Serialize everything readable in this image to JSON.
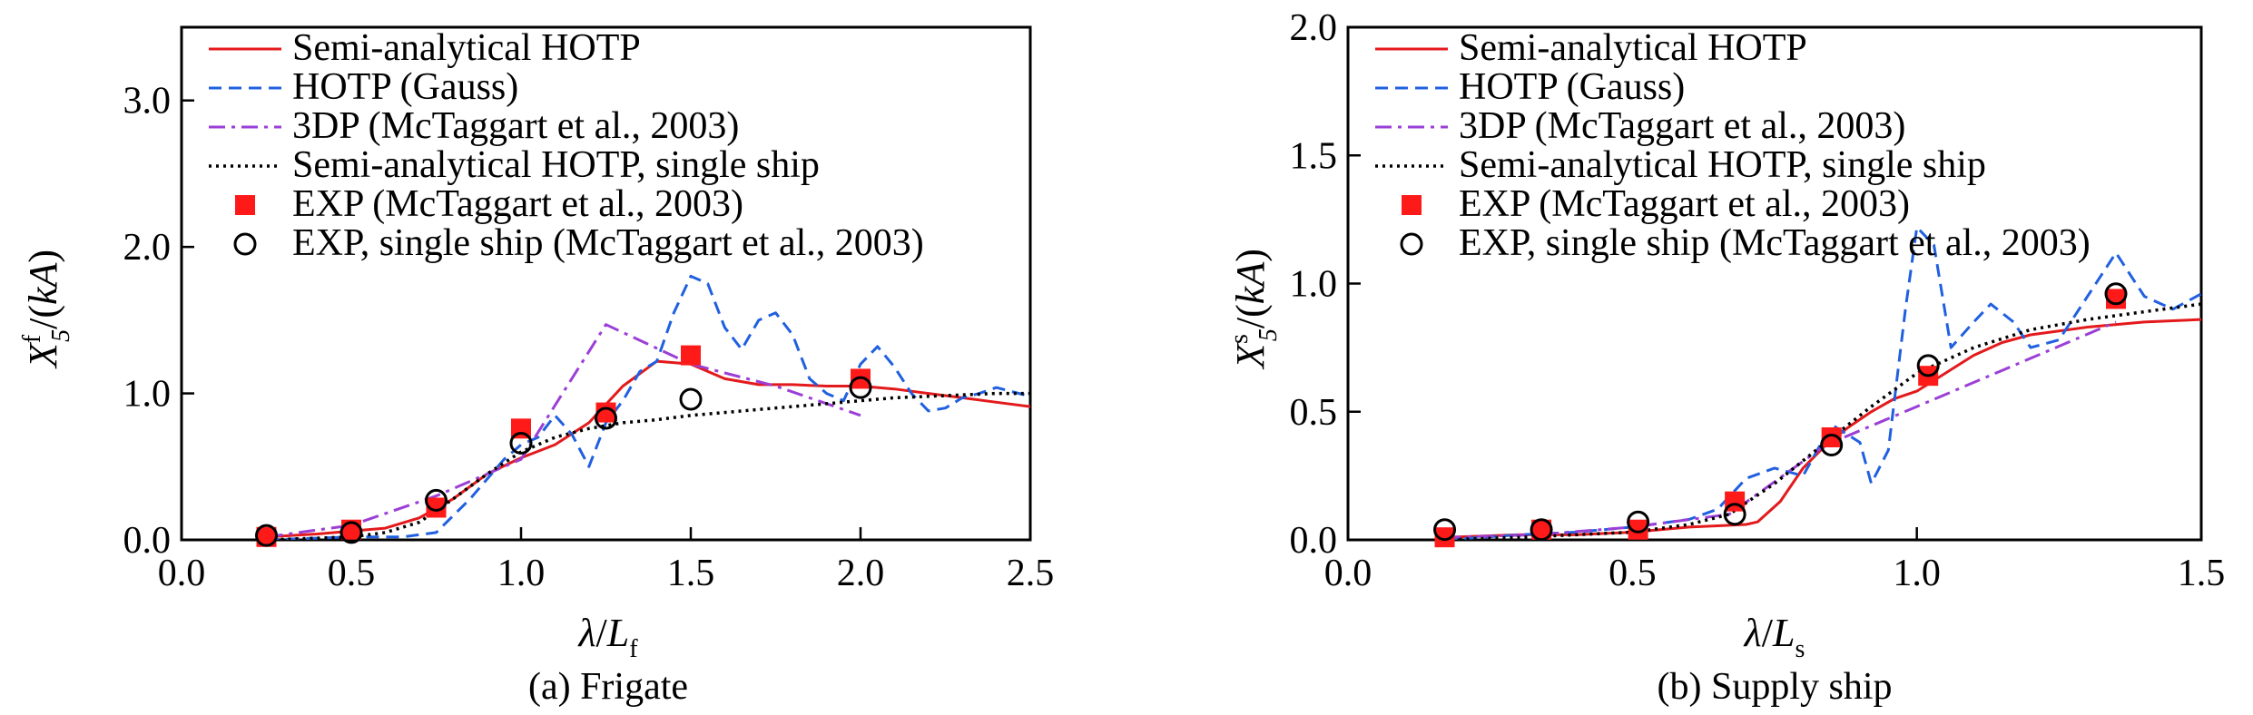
{
  "colors": {
    "semi_analytical": "#e31a1c",
    "gauss": "#2060e0",
    "three_dp": "#9b3fd6",
    "single_ship": "#000000",
    "exp": "#ff1a1a",
    "exp_single": "#000000"
  },
  "legend_labels": {
    "semi": "Semi-analytical HOTP",
    "gauss": "HOTP (Gauss)",
    "dp3": "3DP (McTaggart et al., 2003)",
    "single": "Semi-analytical HOTP, single ship",
    "exp": "EXP (McTaggart et al., 2003)",
    "exp_single": "EXP, single ship (McTaggart et al., 2003)"
  },
  "chart_data": [
    {
      "type": "line",
      "caption": "(a) Frigate",
      "xlabel": "λ/Lf",
      "ylabel": "X5f/(kA)",
      "xlim": [
        0.0,
        2.5
      ],
      "ylim": [
        0.0,
        3.5
      ],
      "xticks": [
        "0.0",
        "0.5",
        "1.0",
        "1.5",
        "2.0",
        "2.5"
      ],
      "yticks": [
        "0.0",
        "1.0",
        "2.0",
        "3.0"
      ],
      "legend_position": "top-left",
      "series": [
        {
          "key": "semi",
          "name": "Semi-analytical HOTP",
          "style": "solid",
          "x": [
            0.25,
            0.4,
            0.5,
            0.6,
            0.7,
            0.8,
            0.9,
            1.0,
            1.1,
            1.2,
            1.3,
            1.4,
            1.5,
            1.6,
            1.7,
            1.8,
            1.9,
            2.0,
            2.1,
            2.2,
            2.3,
            2.4,
            2.5
          ],
          "y": [
            0.02,
            0.04,
            0.06,
            0.08,
            0.15,
            0.28,
            0.45,
            0.56,
            0.65,
            0.8,
            1.05,
            1.22,
            1.2,
            1.1,
            1.06,
            1.06,
            1.05,
            1.05,
            1.03,
            1.0,
            0.97,
            0.94,
            0.91
          ]
        },
        {
          "key": "gauss",
          "name": "HOTP (Gauss)",
          "style": "dashed",
          "x": [
            0.25,
            0.5,
            0.65,
            0.75,
            0.85,
            0.95,
            1.0,
            1.05,
            1.1,
            1.15,
            1.2,
            1.25,
            1.3,
            1.35,
            1.4,
            1.45,
            1.5,
            1.55,
            1.6,
            1.65,
            1.7,
            1.75,
            1.8,
            1.85,
            1.9,
            1.95,
            2.0,
            2.05,
            2.1,
            2.15,
            2.2,
            2.25,
            2.3,
            2.35,
            2.4,
            2.45,
            2.5
          ],
          "y": [
            0.0,
            0.02,
            0.02,
            0.05,
            0.28,
            0.55,
            0.65,
            0.7,
            0.85,
            0.72,
            0.5,
            0.8,
            0.95,
            1.15,
            1.22,
            1.55,
            1.8,
            1.75,
            1.45,
            1.3,
            1.5,
            1.55,
            1.4,
            1.1,
            1.0,
            0.95,
            1.2,
            1.32,
            1.18,
            1.0,
            0.88,
            0.9,
            0.97,
            1.0,
            1.04,
            1.01,
            0.98
          ]
        },
        {
          "key": "dp3",
          "name": "3DP (McTaggart et al., 2003)",
          "style": "dashdot",
          "x": [
            0.25,
            0.5,
            0.75,
            1.0,
            1.25,
            1.5,
            1.75,
            2.0
          ],
          "y": [
            0.02,
            0.1,
            0.3,
            0.55,
            1.47,
            1.2,
            1.05,
            0.85
          ]
        },
        {
          "key": "single",
          "name": "Semi-analytical HOTP, single ship",
          "style": "dotted",
          "x": [
            0.25,
            0.5,
            0.6,
            0.7,
            0.8,
            0.9,
            1.0,
            1.1,
            1.2,
            1.3,
            1.4,
            1.5,
            1.6,
            1.7,
            1.8,
            1.9,
            2.0,
            2.1,
            2.2,
            2.3,
            2.4,
            2.5
          ],
          "y": [
            0.0,
            0.02,
            0.05,
            0.12,
            0.28,
            0.45,
            0.6,
            0.7,
            0.76,
            0.8,
            0.82,
            0.85,
            0.87,
            0.89,
            0.91,
            0.93,
            0.95,
            0.97,
            0.98,
            0.99,
            1.0,
            1.0
          ]
        },
        {
          "key": "exp",
          "name": "EXP (McTaggart et al., 2003)",
          "style": "square",
          "x": [
            0.25,
            0.5,
            0.75,
            1.0,
            1.25,
            1.5,
            2.0
          ],
          "y": [
            0.02,
            0.07,
            0.22,
            0.76,
            0.87,
            1.26,
            1.1
          ]
        },
        {
          "key": "exp_single",
          "name": "EXP, single ship (McTaggart et al., 2003)",
          "style": "circle",
          "x": [
            0.25,
            0.5,
            0.75,
            1.0,
            1.25,
            1.5,
            2.0
          ],
          "y": [
            0.03,
            0.05,
            0.27,
            0.66,
            0.83,
            0.96,
            1.04
          ]
        }
      ]
    },
    {
      "type": "line",
      "caption": "(b) Supply ship",
      "xlabel": "λ/Ls",
      "ylabel": "X5s/(kA)",
      "xlim": [
        0.0,
        1.5
      ],
      "ylim": [
        0.0,
        2.0
      ],
      "xticks": [
        "0.0",
        "0.5",
        "1.0",
        "1.5"
      ],
      "yticks": [
        "0.0",
        "0.5",
        "1.0",
        "1.5",
        "2.0"
      ],
      "legend_position": "top-left",
      "series": [
        {
          "key": "semi",
          "name": "Semi-analytical HOTP",
          "style": "solid",
          "x": [
            0.17,
            0.3,
            0.4,
            0.5,
            0.6,
            0.7,
            0.72,
            0.76,
            0.8,
            0.84,
            0.88,
            0.92,
            0.96,
            1.0,
            1.05,
            1.1,
            1.15,
            1.2,
            1.3,
            1.4,
            1.5
          ],
          "y": [
            0.01,
            0.02,
            0.02,
            0.03,
            0.05,
            0.06,
            0.07,
            0.15,
            0.28,
            0.37,
            0.44,
            0.5,
            0.55,
            0.58,
            0.65,
            0.72,
            0.77,
            0.8,
            0.83,
            0.85,
            0.86
          ]
        },
        {
          "key": "gauss",
          "name": "HOTP (Gauss)",
          "style": "dashed",
          "x": [
            0.17,
            0.3,
            0.4,
            0.5,
            0.6,
            0.65,
            0.7,
            0.75,
            0.8,
            0.85,
            0.9,
            0.92,
            0.95,
            0.98,
            1.0,
            1.03,
            1.06,
            1.1,
            1.13,
            1.17,
            1.2,
            1.25,
            1.3,
            1.35,
            1.4,
            1.45,
            1.5
          ],
          "y": [
            0.0,
            0.02,
            0.03,
            0.05,
            0.08,
            0.12,
            0.24,
            0.28,
            0.25,
            0.45,
            0.38,
            0.22,
            0.35,
            0.9,
            1.22,
            1.15,
            0.75,
            0.85,
            0.92,
            0.85,
            0.75,
            0.78,
            0.95,
            1.12,
            0.95,
            0.9,
            0.96
          ]
        },
        {
          "key": "dp3",
          "name": "3DP (McTaggart et al., 2003)",
          "style": "dashdot",
          "x": [
            0.17,
            0.33,
            0.5,
            0.67,
            0.84,
            1.0,
            1.17,
            1.35
          ],
          "y": [
            0.01,
            0.02,
            0.05,
            0.1,
            0.37,
            0.52,
            0.68,
            0.85
          ]
        },
        {
          "key": "single",
          "name": "Semi-analytical HOTP, single ship",
          "style": "dotted",
          "x": [
            0.17,
            0.3,
            0.4,
            0.5,
            0.6,
            0.67,
            0.75,
            0.84,
            0.92,
            1.0,
            1.1,
            1.2,
            1.3,
            1.4,
            1.5
          ],
          "y": [
            0.0,
            0.01,
            0.02,
            0.03,
            0.06,
            0.1,
            0.22,
            0.38,
            0.52,
            0.65,
            0.75,
            0.82,
            0.86,
            0.89,
            0.92
          ]
        },
        {
          "key": "exp",
          "name": "EXP (McTaggart et al., 2003)",
          "style": "square",
          "x": [
            0.17,
            0.34,
            0.51,
            0.68,
            0.85,
            1.02,
            1.35
          ],
          "y": [
            0.01,
            0.04,
            0.04,
            0.15,
            0.4,
            0.64,
            0.94
          ]
        },
        {
          "key": "exp_single",
          "name": "EXP, single ship (McTaggart et al., 2003)",
          "style": "circle",
          "x": [
            0.17,
            0.34,
            0.51,
            0.68,
            0.85,
            1.02,
            1.35
          ],
          "y": [
            0.04,
            0.04,
            0.07,
            0.1,
            0.37,
            0.68,
            0.96
          ]
        }
      ]
    }
  ]
}
